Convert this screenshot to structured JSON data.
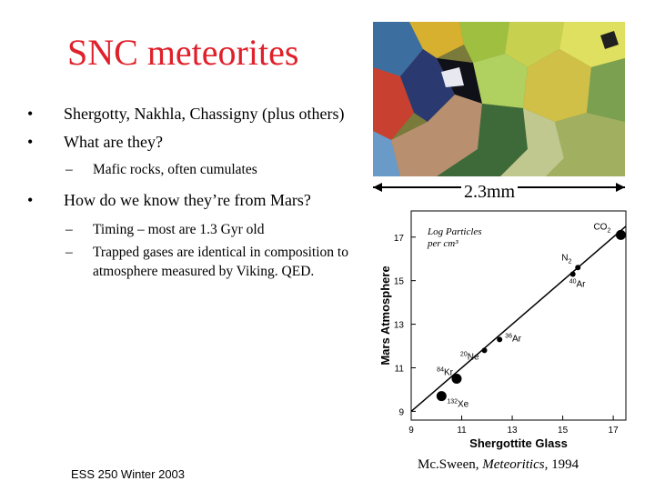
{
  "slide": {
    "title": "SNC meteorites",
    "bullets": {
      "b1": "Shergotty, Nakhla, Chassigny (plus others)",
      "b2": "What are they?",
      "b2_sub1": "Mafic rocks, often cumulates",
      "b3": "How do we know they’re from Mars?",
      "b3_sub1": "Timing – most are 1.3 Gyr old",
      "b3_sub2": "Trapped gases are identical in composition to atmosphere measured by Viking. QED."
    },
    "bullet_char": "•",
    "dash_char": "–",
    "footer": "ESS 250 Winter 2003",
    "scale_bar_label": "2.3mm",
    "credit_author": "Mc.Sween, ",
    "credit_journal": "Meteoritics",
    "credit_year": ", 1994"
  },
  "chart_data": {
    "type": "scatter",
    "annotation_line1": "Log Particles",
    "annotation_line2": "per cm³",
    "xlabel": "Shergottite Glass",
    "ylabel": "Mars Atmosphere",
    "xlim": [
      9,
      17.5
    ],
    "ylim": [
      8.6,
      18.2
    ],
    "xticks": [
      9,
      11,
      13,
      15,
      17
    ],
    "yticks": [
      9,
      11,
      13,
      15,
      17
    ],
    "fit_line": [
      [
        9,
        9
      ],
      [
        17.5,
        17.5
      ]
    ],
    "points": [
      {
        "label": "132Xe",
        "mass": "132",
        "sym": "Xe",
        "x": 10.2,
        "y": 9.7,
        "size": "large"
      },
      {
        "label": "84Kr",
        "mass": "84",
        "sym": "Kr",
        "x": 10.8,
        "y": 10.5,
        "size": "large"
      },
      {
        "label": "20Ne",
        "mass": "20",
        "sym": "Ne",
        "x": 11.9,
        "y": 11.8,
        "size": "small"
      },
      {
        "label": "36Ar",
        "mass": "36",
        "sym": "Ar",
        "x": 12.5,
        "y": 12.3,
        "size": "small"
      },
      {
        "label": "40Ar",
        "mass": "40",
        "sym": "Ar",
        "x": 15.4,
        "y": 15.3,
        "size": "small"
      },
      {
        "label": "N2",
        "mass": "",
        "sym": "N",
        "sub": "2",
        "x": 15.6,
        "y": 15.6,
        "size": "small"
      },
      {
        "label": "CO2",
        "mass": "",
        "sym": "CO",
        "sub": "2",
        "x": 17.3,
        "y": 17.1,
        "size": "large"
      }
    ]
  },
  "colors": {
    "title": "#e0202a",
    "text": "#000000"
  }
}
